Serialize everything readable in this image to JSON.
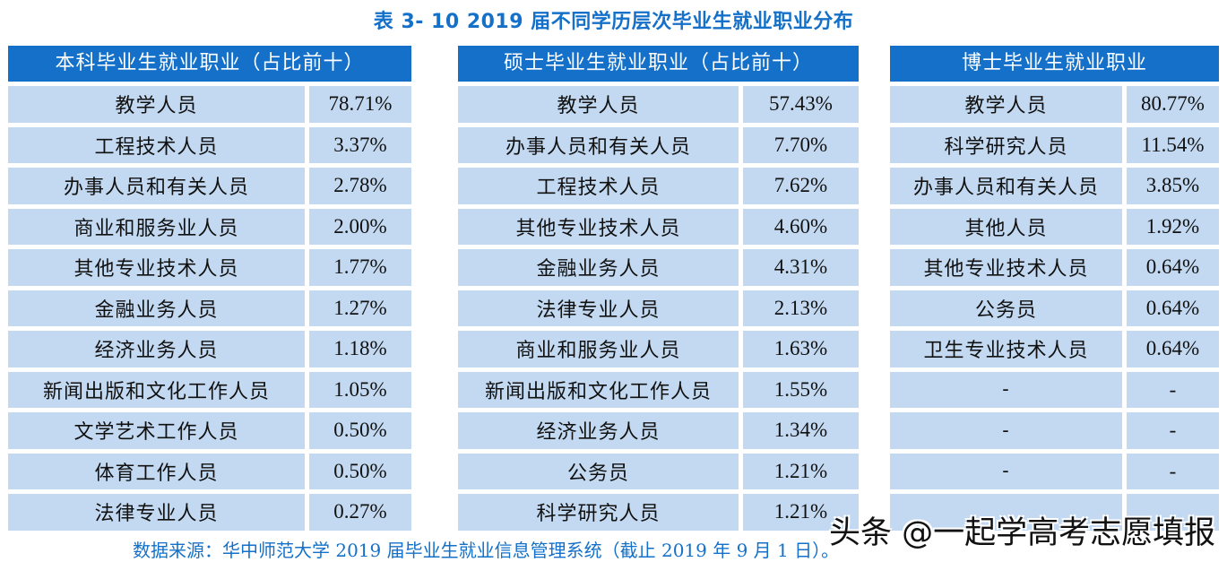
{
  "title": "表 3- 10    2019 届不同学历层次毕业生就业职业分布",
  "tables": [
    {
      "header": "本科毕业生就业职业（占比前十）",
      "rows": [
        {
          "name": "教学人员",
          "value": "78.71%"
        },
        {
          "name": "工程技术人员",
          "value": "3.37%"
        },
        {
          "name": "办事人员和有关人员",
          "value": "2.78%"
        },
        {
          "name": "商业和服务业人员",
          "value": "2.00%"
        },
        {
          "name": "其他专业技术人员",
          "value": "1.77%"
        },
        {
          "name": "金融业务人员",
          "value": "1.27%"
        },
        {
          "name": "经济业务人员",
          "value": "1.18%"
        },
        {
          "name": "新闻出版和文化工作人员",
          "value": "1.05%"
        },
        {
          "name": "文学艺术工作人员",
          "value": "0.50%"
        },
        {
          "name": "体育工作人员",
          "value": "0.50%"
        },
        {
          "name": "法律专业人员",
          "value": "0.27%"
        }
      ]
    },
    {
      "header": "硕士毕业生就业职业（占比前十）",
      "rows": [
        {
          "name": "教学人员",
          "value": "57.43%"
        },
        {
          "name": "办事人员和有关人员",
          "value": "7.70%"
        },
        {
          "name": "工程技术人员",
          "value": "7.62%"
        },
        {
          "name": "其他专业技术人员",
          "value": "4.60%"
        },
        {
          "name": "金融业务人员",
          "value": "4.31%"
        },
        {
          "name": "法律专业人员",
          "value": "2.13%"
        },
        {
          "name": "商业和服务业人员",
          "value": "1.63%"
        },
        {
          "name": "新闻出版和文化工作人员",
          "value": "1.55%"
        },
        {
          "name": "经济业务人员",
          "value": "1.34%"
        },
        {
          "name": "公务员",
          "value": "1.21%"
        },
        {
          "name": "科学研究人员",
          "value": "1.21%"
        }
      ]
    },
    {
      "header": "博士毕业生就业职业",
      "rows": [
        {
          "name": "教学人员",
          "value": "80.77%"
        },
        {
          "name": "科学研究人员",
          "value": "11.54%"
        },
        {
          "name": "办事人员和有关人员",
          "value": "3.85%"
        },
        {
          "name": "其他人员",
          "value": "1.92%"
        },
        {
          "name": "其他专业技术人员",
          "value": "0.64%"
        },
        {
          "name": "公务员",
          "value": "0.64%"
        },
        {
          "name": "卫生专业技术人员",
          "value": "0.64%"
        },
        {
          "name": "-",
          "value": "-"
        },
        {
          "name": "-",
          "value": "-"
        },
        {
          "name": "-",
          "value": "-"
        },
        {
          "name": "",
          "value": ""
        }
      ]
    }
  ],
  "source": "数据来源：华中师范大学 2019 届毕业生就业信息管理系统（截止 2019 年 9 月 1 日）。",
  "watermark": "头条 @一起学高考志愿填报",
  "colors": {
    "header_bg": "#1470c8",
    "cell_bg": "#c2d9f1",
    "title": "#1470c8",
    "source": "#1470c8"
  }
}
